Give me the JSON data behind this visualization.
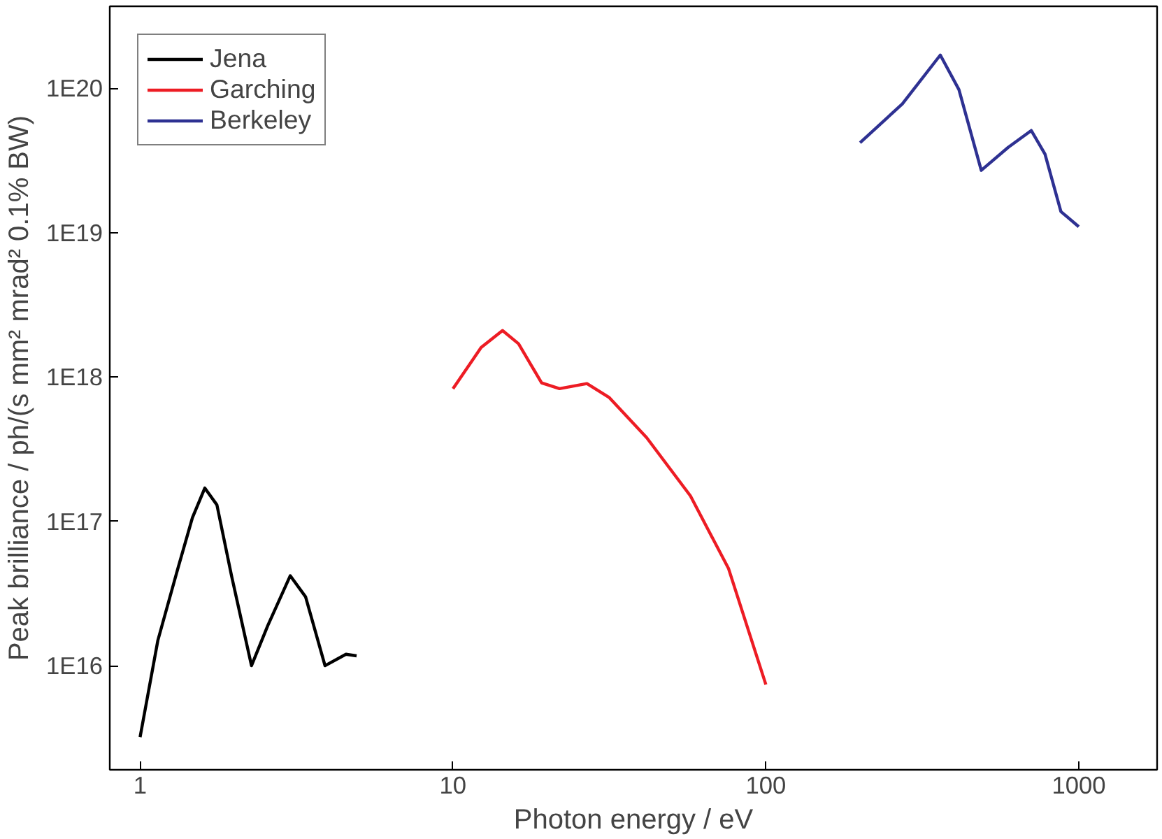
{
  "chart_data": {
    "type": "line",
    "xlabel": "Photon energy / eV",
    "ylabel": "Peak brilliance / ph/(s mm² mrad² 0.1% BW)",
    "log": "xy",
    "grid": false,
    "legend": "top left",
    "line_style": "solid",
    "marker": "none",
    "xlim": [
      0.8,
      1780
    ],
    "ylim": [
      1900000000000000.0,
      3.7e+20
    ],
    "xticks": [
      1,
      10,
      100,
      1000
    ],
    "yticks": [
      {
        "value": 1e+16,
        "label": "1E16"
      },
      {
        "value": 1e+17,
        "label": "1E17"
      },
      {
        "value": 1e+18,
        "label": "1E18"
      },
      {
        "value": 1e+19,
        "label": "1E19"
      },
      {
        "value": 1e+20,
        "label": "1E20"
      }
    ],
    "series": [
      {
        "name": "Jena",
        "color": "#000000",
        "x": [
          1,
          1.14,
          1.32,
          1.47,
          1.61,
          1.76,
          1.96,
          2.27,
          2.56,
          3.02,
          3.38,
          3.9,
          4.55,
          4.92
        ],
        "values": [
          3200000000000000.0,
          1.5e+16,
          4.7e+16,
          1.06e+17,
          1.7e+17,
          1.3e+17,
          4.2e+16,
          1e+16,
          1.9e+16,
          4.2e+16,
          3e+16,
          1e+16,
          1.2e+16,
          1.17e+16
        ]
      },
      {
        "name": "Garching",
        "color": "#ed1c24",
        "x": [
          10,
          12.3,
          14.4,
          16.2,
          19.2,
          21.9,
          26.8,
          31.6,
          41.6,
          57.4,
          76,
          100
        ],
        "values": [
          8.3e+17,
          1.6e+18,
          2.1e+18,
          1.7e+18,
          9.1e+17,
          8.3e+17,
          9e+17,
          7.2e+17,
          3.8e+17,
          1.5e+17,
          4.7e+16,
          7400000000000000.0
        ]
      },
      {
        "name": "Berkeley",
        "color": "#2e3192",
        "x": [
          200,
          273,
          361,
          414,
          488,
          595,
          705,
          780,
          877,
          1000
        ],
        "values": [
          4.2e+19,
          7.8e+19,
          1.7e+20,
          9.8e+19,
          2.7e+19,
          3.9e+19,
          5.1e+19,
          3.5e+19,
          1.4e+19,
          1.1e+19
        ]
      }
    ]
  }
}
